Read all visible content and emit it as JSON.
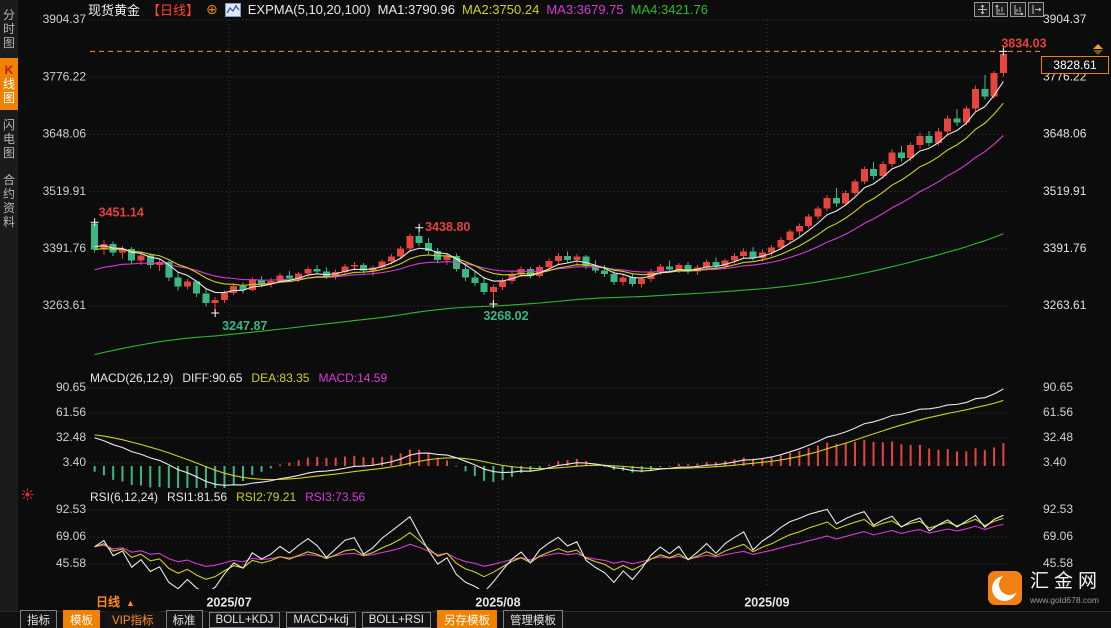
{
  "colors": {
    "accent_orange": "#f08200",
    "candle_up": "#e5453c",
    "candle_down": "#3bb786",
    "line_white": "#e8e8e8",
    "line_yellow": "#cdd21b",
    "line_magenta": "#d63ad6",
    "line_green": "#2eb82e",
    "annotation_red": "#e5413d",
    "annotation_green": "#3bb786",
    "high_dash_orange": "#ff9326",
    "grid": "#3e3e42",
    "axis_text": "#d0d0d0"
  },
  "title_bar": {
    "symbol": "现货黄金",
    "period": "【日线】",
    "plus_icon": "⊕",
    "indicator_label": "EXPMA(5,10,20,100)",
    "ma1": "MA1:3790.96",
    "ma2": "MA2:3750.24",
    "ma3": "MA3:3679.75",
    "ma4": "MA4:3421.76"
  },
  "sidebar": {
    "items": [
      {
        "label": "分时图",
        "selected": false
      },
      {
        "label": "K线图",
        "selected": true
      },
      {
        "label": "闪电图",
        "selected": false
      },
      {
        "label": "合约资料",
        "selected": false
      }
    ]
  },
  "macd_row": {
    "name": "MACD(26,12,9)",
    "diff": "DIFF:90.65",
    "dea": "DEA:83.35",
    "macd": "MACD:14.59"
  },
  "rsi_row": {
    "name": "RSI(6,12,24)",
    "rsi1": "RSI1:81.56",
    "rsi2": "RSI2:79.21",
    "rsi3": "RSI3:73.56"
  },
  "price_tag": {
    "value": "3828.61"
  },
  "bottom_bar": {
    "period": "日线",
    "arrow": "▲",
    "tabs": [
      {
        "label": "指标",
        "style": "bordered"
      },
      {
        "label": "模板",
        "style": "active"
      },
      {
        "label": "VIP指标",
        "style": "orange-text"
      },
      {
        "label": "标准",
        "style": "bordered"
      },
      {
        "label": "BOLL+KDJ",
        "style": "bordered"
      },
      {
        "label": "MACD+kdj",
        "style": "bordered"
      },
      {
        "label": "BOLL+RSI",
        "style": "bordered"
      },
      {
        "label": "另存模板",
        "style": "active"
      },
      {
        "label": "管理模板",
        "style": "bordered"
      }
    ]
  },
  "logo": {
    "text": "汇金网",
    "url": "www.gold678.com"
  },
  "chart_data": {
    "type": "candlestick",
    "title": "现货黄金 日线",
    "legend": [
      "EXPMA5 白",
      "EXPMA10 黄",
      "EXPMA20 紫",
      "EXPMA100 绿"
    ],
    "expma_periods": [
      5,
      10,
      20,
      100
    ],
    "main_axis_ticks": [
      3904.37,
      3776.22,
      3648.06,
      3519.91,
      3391.76,
      3263.61
    ],
    "macd_axis_ticks": [
      90.65,
      61.56,
      32.48,
      3.4
    ],
    "rsi_axis_ticks": [
      92.53,
      69.06,
      45.58
    ],
    "x_gridlines": [
      {
        "boundary_index": 15,
        "label": "2025/07"
      },
      {
        "boundary_index": 44,
        "label": "2025/08"
      },
      {
        "boundary_index": 73,
        "label": "2025/09"
      }
    ],
    "macd": {
      "params": [
        26,
        12,
        9
      ],
      "diff": 90.65,
      "dea": 83.35,
      "macd": 14.59
    },
    "rsi": {
      "params": [
        6,
        12,
        24
      ],
      "rsi1": 81.56,
      "rsi2": 79.21,
      "rsi3": 73.56
    },
    "session_high": {
      "price": 3834.03,
      "label": "3834.03"
    },
    "last_price": {
      "price": 3828.61,
      "label": "3828.61"
    },
    "marked_points": [
      {
        "index": 0,
        "kind": "high",
        "price": 3451.14,
        "label": "3451.14"
      },
      {
        "index": 13,
        "kind": "low",
        "price": 3247.87,
        "label": "3247.87"
      },
      {
        "index": 35,
        "kind": "high",
        "price": 3438.8,
        "label": "3438.80"
      },
      {
        "index": 43,
        "kind": "low",
        "price": 3268.02,
        "label": "3268.02"
      },
      {
        "index": 98,
        "kind": "high",
        "price": 3834.03,
        "label": "3834.03"
      }
    ],
    "ohlc": [
      [
        3448,
        3451.14,
        3383,
        3390
      ],
      [
        3390,
        3412,
        3378,
        3403
      ],
      [
        3403,
        3408,
        3376,
        3383
      ],
      [
        3383,
        3398,
        3370,
        3391
      ],
      [
        3391,
        3396,
        3358,
        3366
      ],
      [
        3366,
        3384,
        3356,
        3377
      ],
      [
        3377,
        3381,
        3348,
        3356
      ],
      [
        3356,
        3370,
        3342,
        3362
      ],
      [
        3362,
        3366,
        3320,
        3328
      ],
      [
        3328,
        3340,
        3298,
        3307
      ],
      [
        3307,
        3324,
        3301,
        3318
      ],
      [
        3318,
        3321,
        3284,
        3292
      ],
      [
        3292,
        3302,
        3262,
        3270
      ],
      [
        3270,
        3284,
        3247.87,
        3277
      ],
      [
        3277,
        3298,
        3270,
        3293
      ],
      [
        3293,
        3314,
        3288,
        3308
      ],
      [
        3308,
        3316,
        3292,
        3299
      ],
      [
        3299,
        3328,
        3296,
        3322
      ],
      [
        3322,
        3331,
        3306,
        3313
      ],
      [
        3313,
        3326,
        3305,
        3320
      ],
      [
        3320,
        3337,
        3315,
        3332
      ],
      [
        3332,
        3342,
        3318,
        3325
      ],
      [
        3325,
        3340,
        3317,
        3336
      ],
      [
        3336,
        3352,
        3330,
        3347
      ],
      [
        3347,
        3356,
        3336,
        3341
      ],
      [
        3341,
        3350,
        3324,
        3330
      ],
      [
        3330,
        3345,
        3323,
        3340
      ],
      [
        3340,
        3358,
        3335,
        3352
      ],
      [
        3352,
        3362,
        3343,
        3356
      ],
      [
        3356,
        3360,
        3336,
        3343
      ],
      [
        3343,
        3354,
        3331,
        3350
      ],
      [
        3350,
        3368,
        3345,
        3363
      ],
      [
        3363,
        3380,
        3357,
        3375
      ],
      [
        3375,
        3398,
        3369,
        3392
      ],
      [
        3392,
        3426,
        3387,
        3420
      ],
      [
        3420,
        3438.8,
        3398,
        3405
      ],
      [
        3405,
        3416,
        3380,
        3387
      ],
      [
        3387,
        3394,
        3360,
        3367
      ],
      [
        3367,
        3382,
        3355,
        3376
      ],
      [
        3376,
        3381,
        3341,
        3347
      ],
      [
        3347,
        3360,
        3320,
        3327
      ],
      [
        3327,
        3342,
        3308,
        3315
      ],
      [
        3315,
        3330,
        3288,
        3295
      ],
      [
        3295,
        3312,
        3268.02,
        3306
      ],
      [
        3306,
        3326,
        3299,
        3320
      ],
      [
        3320,
        3341,
        3313,
        3335
      ],
      [
        3335,
        3352,
        3329,
        3346
      ],
      [
        3346,
        3351,
        3325,
        3331
      ],
      [
        3331,
        3356,
        3327,
        3351
      ],
      [
        3351,
        3370,
        3345,
        3364
      ],
      [
        3364,
        3382,
        3357,
        3376
      ],
      [
        3376,
        3386,
        3361,
        3367
      ],
      [
        3367,
        3380,
        3354,
        3374
      ],
      [
        3374,
        3378,
        3347,
        3353
      ],
      [
        3353,
        3365,
        3337,
        3343
      ],
      [
        3343,
        3356,
        3329,
        3335
      ],
      [
        3335,
        3342,
        3311,
        3317
      ],
      [
        3317,
        3334,
        3309,
        3328
      ],
      [
        3328,
        3336,
        3307,
        3313
      ],
      [
        3313,
        3330,
        3305,
        3324
      ],
      [
        3324,
        3346,
        3317,
        3340
      ],
      [
        3340,
        3358,
        3333,
        3352
      ],
      [
        3352,
        3366,
        3339,
        3345
      ],
      [
        3345,
        3360,
        3337,
        3355
      ],
      [
        3355,
        3362,
        3335,
        3341
      ],
      [
        3341,
        3356,
        3333,
        3350
      ],
      [
        3350,
        3368,
        3343,
        3362
      ],
      [
        3362,
        3372,
        3347,
        3353
      ],
      [
        3353,
        3370,
        3345,
        3366
      ],
      [
        3366,
        3382,
        3359,
        3376
      ],
      [
        3376,
        3392,
        3369,
        3386
      ],
      [
        3386,
        3396,
        3366,
        3371
      ],
      [
        3371,
        3390,
        3363,
        3384
      ],
      [
        3384,
        3400,
        3375,
        3395
      ],
      [
        3395,
        3418,
        3389,
        3412
      ],
      [
        3412,
        3436,
        3405,
        3430
      ],
      [
        3430,
        3448,
        3421,
        3443
      ],
      [
        3443,
        3470,
        3437,
        3464
      ],
      [
        3464,
        3488,
        3457,
        3482
      ],
      [
        3482,
        3512,
        3475,
        3506
      ],
      [
        3506,
        3528,
        3485,
        3493
      ],
      [
        3493,
        3522,
        3488,
        3517
      ],
      [
        3517,
        3548,
        3511,
        3543
      ],
      [
        3543,
        3576,
        3537,
        3570
      ],
      [
        3570,
        3586,
        3547,
        3555
      ],
      [
        3555,
        3588,
        3549,
        3582
      ],
      [
        3582,
        3615,
        3575,
        3608
      ],
      [
        3608,
        3622,
        3587,
        3595
      ],
      [
        3595,
        3630,
        3589,
        3624
      ],
      [
        3624,
        3652,
        3615,
        3645
      ],
      [
        3645,
        3656,
        3621,
        3629
      ],
      [
        3629,
        3662,
        3623,
        3655
      ],
      [
        3655,
        3690,
        3647,
        3684
      ],
      [
        3684,
        3705,
        3667,
        3675
      ],
      [
        3675,
        3712,
        3669,
        3706
      ],
      [
        3706,
        3758,
        3700,
        3750
      ],
      [
        3750,
        3781,
        3726,
        3733
      ],
      [
        3733,
        3790,
        3728,
        3786
      ],
      [
        3786,
        3834.03,
        3778,
        3828.61
      ]
    ]
  }
}
